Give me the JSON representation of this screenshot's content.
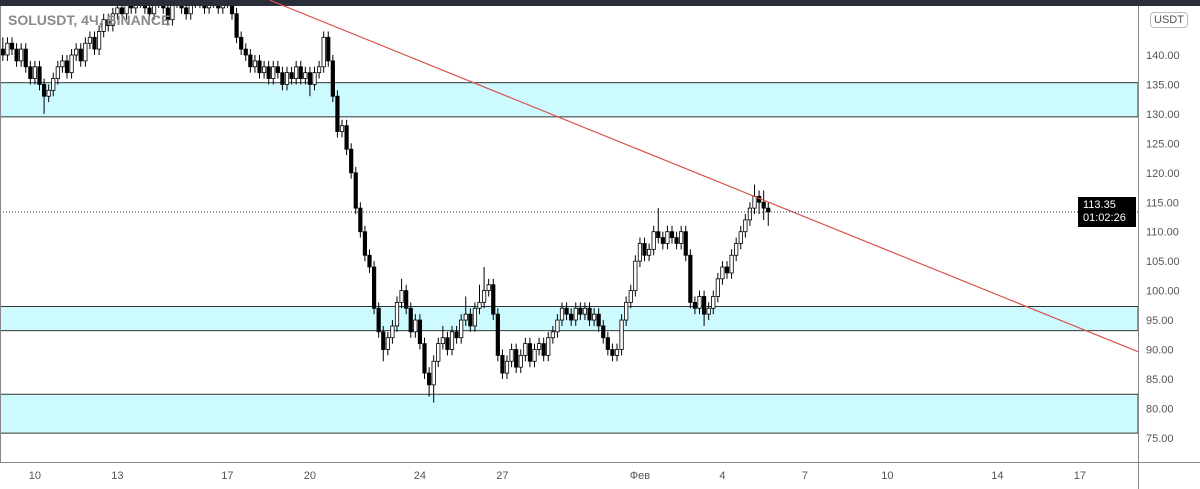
{
  "header": {
    "symbol": "SOLUSDT, 4Ч, BINANCE",
    "currency": "USDT"
  },
  "last_price": {
    "value": "113.35",
    "countdown": "01:02:26"
  },
  "colors": {
    "zone_fill": "#ccfaff",
    "trendline": "#d9534f",
    "bull": "#ffffff",
    "bear": "#000000",
    "grid": "#999999"
  },
  "chart_data": {
    "type": "candlestick",
    "interval_hours": 4,
    "first_candle": "01-08 20:00",
    "ylim": [
      73,
      149.3
    ],
    "y_ticks": [
      "140.00",
      "135.00",
      "130.00",
      "125.00",
      "120.00",
      "115.00",
      "110.00",
      "105.00",
      "100.00",
      "95.00",
      "90.00",
      "85.00",
      "80.00",
      "75.00"
    ],
    "x_ticks": [
      {
        "label": "10",
        "date": "01-10"
      },
      {
        "label": "13",
        "date": "01-13"
      },
      {
        "label": "17",
        "date": "01-17"
      },
      {
        "label": "20",
        "date": "01-20"
      },
      {
        "label": "24",
        "date": "01-24"
      },
      {
        "label": "27",
        "date": "01-27"
      },
      {
        "label": "Фев",
        "date": "02-01"
      },
      {
        "label": "4",
        "date": "02-04"
      },
      {
        "label": "7",
        "date": "02-07"
      },
      {
        "label": "10",
        "date": "02-10"
      },
      {
        "label": "14",
        "date": "02-14"
      },
      {
        "label": "17",
        "date": "02-17"
      }
    ],
    "zones": [
      [
        129.5,
        135.3
      ],
      [
        93.2,
        97.3
      ],
      [
        75.8,
        82.4
      ]
    ],
    "trendline": [
      {
        "date": "01-18 13:00",
        "price": 149.3
      },
      {
        "date": "02-19 03:00",
        "price": 89.6
      }
    ],
    "current_price": 113.35,
    "candles": [
      [
        141,
        143,
        139,
        140
      ],
      [
        140,
        143,
        139,
        142
      ],
      [
        142,
        143,
        140,
        141
      ],
      [
        141,
        142,
        138,
        139
      ],
      [
        139,
        142,
        138,
        141
      ],
      [
        141,
        142,
        137,
        138
      ],
      [
        138,
        139,
        135,
        136
      ],
      [
        136,
        139,
        135,
        138
      ],
      [
        138,
        139,
        134,
        135
      ],
      [
        135,
        136,
        130,
        133
      ],
      [
        133,
        135,
        132,
        134
      ],
      [
        134,
        137,
        133,
        136
      ],
      [
        136,
        139,
        135,
        138
      ],
      [
        138,
        140,
        137,
        139
      ],
      [
        139,
        140,
        136,
        137
      ],
      [
        137,
        141,
        136,
        140
      ],
      [
        140,
        142,
        139,
        141
      ],
      [
        141,
        142,
        138,
        139
      ],
      [
        139,
        143,
        138,
        142
      ],
      [
        142,
        144,
        141,
        143
      ],
      [
        143,
        144,
        140,
        141
      ],
      [
        141,
        145,
        140,
        144
      ],
      [
        144,
        147,
        143,
        146
      ],
      [
        146,
        147,
        144,
        145
      ],
      [
        145,
        148,
        144,
        147
      ],
      [
        147,
        149,
        146,
        148
      ],
      [
        148,
        149,
        146,
        147
      ],
      [
        147,
        150,
        146,
        149
      ],
      [
        149,
        150,
        147,
        148
      ],
      [
        148,
        151,
        147,
        150
      ],
      [
        150,
        151,
        148,
        149
      ],
      [
        149,
        150,
        147,
        148
      ],
      [
        148,
        149,
        146,
        147
      ],
      [
        147,
        150,
        146,
        149
      ],
      [
        149,
        151,
        148,
        150
      ],
      [
        150,
        151,
        147,
        148
      ],
      [
        148,
        149,
        145,
        146
      ],
      [
        146,
        150,
        145,
        149
      ],
      [
        149,
        151,
        148,
        150
      ],
      [
        150,
        151,
        147,
        148
      ],
      [
        148,
        149,
        146,
        147
      ],
      [
        147,
        150,
        146,
        149
      ],
      [
        149,
        151,
        148,
        150
      ],
      [
        150,
        151,
        148,
        149
      ],
      [
        149,
        150,
        147,
        148
      ],
      [
        148,
        151,
        147,
        150
      ],
      [
        150,
        151,
        148,
        149
      ],
      [
        149,
        150,
        147,
        148
      ],
      [
        148,
        151,
        147,
        150
      ],
      [
        150,
        151,
        148,
        149
      ],
      [
        149,
        150,
        146,
        147
      ],
      [
        147,
        148,
        142,
        143
      ],
      [
        143,
        144,
        140,
        141
      ],
      [
        141,
        142,
        139,
        140
      ],
      [
        140,
        141,
        137,
        138
      ],
      [
        138,
        140,
        137,
        139
      ],
      [
        139,
        140,
        136,
        137
      ],
      [
        137,
        139,
        136,
        138
      ],
      [
        138,
        139,
        135,
        136
      ],
      [
        136,
        139,
        135,
        138
      ],
      [
        138,
        139,
        136,
        137
      ],
      [
        137,
        138,
        134,
        135
      ],
      [
        135,
        138,
        134,
        137
      ],
      [
        137,
        138,
        135,
        136
      ],
      [
        136,
        139,
        135,
        138
      ],
      [
        138,
        139,
        135,
        136
      ],
      [
        136,
        138,
        135,
        137
      ],
      [
        137,
        138,
        133,
        135
      ],
      [
        135,
        138,
        134,
        137
      ],
      [
        137,
        139,
        136,
        138
      ],
      [
        138,
        144,
        137,
        143
      ],
      [
        143,
        144,
        138,
        139
      ],
      [
        139,
        140,
        132,
        133
      ],
      [
        133,
        134,
        126,
        127
      ],
      [
        127,
        129,
        126,
        128
      ],
      [
        128,
        129,
        123,
        124
      ],
      [
        124,
        125,
        119,
        120
      ],
      [
        120,
        121,
        113,
        114
      ],
      [
        114,
        115,
        109,
        110
      ],
      [
        110,
        111,
        105,
        106
      ],
      [
        106,
        107,
        103,
        104
      ],
      [
        104,
        105,
        96,
        97
      ],
      [
        97,
        98,
        92,
        93
      ],
      [
        93,
        94,
        88,
        90
      ],
      [
        90,
        93,
        89,
        92
      ],
      [
        92,
        95,
        91,
        94
      ],
      [
        94,
        99,
        93,
        98
      ],
      [
        98,
        102,
        97,
        100
      ],
      [
        100,
        101,
        96,
        97
      ],
      [
        97,
        98,
        92,
        93
      ],
      [
        93,
        96,
        92,
        95
      ],
      [
        95,
        96,
        90,
        91
      ],
      [
        91,
        92,
        85,
        86
      ],
      [
        86,
        87,
        82,
        84
      ],
      [
        84,
        89,
        81,
        88
      ],
      [
        88,
        92,
        87,
        91
      ],
      [
        91,
        94,
        90,
        92
      ],
      [
        92,
        93,
        89,
        90
      ],
      [
        90,
        94,
        89,
        93
      ],
      [
        93,
        94,
        91,
        92
      ],
      [
        92,
        96,
        91,
        95
      ],
      [
        95,
        99,
        94,
        96
      ],
      [
        96,
        97,
        93,
        94
      ],
      [
        94,
        98,
        93,
        97
      ],
      [
        97,
        101,
        96,
        98
      ],
      [
        98,
        104,
        97,
        100
      ],
      [
        100,
        102,
        99,
        101
      ],
      [
        101,
        102,
        95,
        96
      ],
      [
        96,
        97,
        88,
        89
      ],
      [
        89,
        90,
        85,
        86
      ],
      [
        86,
        89,
        85,
        88
      ],
      [
        88,
        91,
        87,
        90
      ],
      [
        90,
        91,
        86,
        87
      ],
      [
        87,
        90,
        86,
        89
      ],
      [
        89,
        92,
        88,
        91
      ],
      [
        91,
        92,
        87,
        88
      ],
      [
        88,
        91,
        87,
        90
      ],
      [
        90,
        92,
        89,
        91
      ],
      [
        91,
        92,
        88,
        89
      ],
      [
        89,
        93,
        88,
        92
      ],
      [
        92,
        94,
        91,
        93
      ],
      [
        93,
        96,
        92,
        95
      ],
      [
        95,
        98,
        94,
        97
      ],
      [
        97,
        98,
        95,
        96
      ],
      [
        96,
        97,
        94,
        95
      ],
      [
        95,
        98,
        94,
        97
      ],
      [
        97,
        98,
        95,
        96
      ],
      [
        96,
        98,
        95,
        97
      ],
      [
        97,
        98,
        94,
        95
      ],
      [
        95,
        97,
        94,
        96
      ],
      [
        96,
        97,
        93,
        94
      ],
      [
        94,
        95,
        91,
        92
      ],
      [
        92,
        93,
        89,
        90
      ],
      [
        90,
        91,
        88,
        89
      ],
      [
        89,
        91,
        88,
        90
      ],
      [
        90,
        96,
        89,
        95
      ],
      [
        95,
        99,
        94,
        98
      ],
      [
        98,
        101,
        97,
        100
      ],
      [
        100,
        106,
        99,
        105
      ],
      [
        105,
        109,
        104,
        108
      ],
      [
        108,
        109,
        105,
        106
      ],
      [
        106,
        108,
        105,
        107
      ],
      [
        107,
        111,
        106,
        110
      ],
      [
        110,
        114,
        108,
        109
      ],
      [
        109,
        110,
        107,
        108
      ],
      [
        108,
        111,
        107,
        110
      ],
      [
        110,
        111,
        108,
        109
      ],
      [
        109,
        110,
        107,
        108
      ],
      [
        108,
        111,
        107,
        110
      ],
      [
        110,
        111,
        105,
        106
      ],
      [
        106,
        107,
        97,
        98
      ],
      [
        98,
        99,
        96,
        97
      ],
      [
        97,
        100,
        96,
        99
      ],
      [
        99,
        100,
        94,
        96
      ],
      [
        96,
        98,
        95,
        97
      ],
      [
        97,
        100,
        96,
        99
      ],
      [
        99,
        103,
        98,
        102
      ],
      [
        102,
        105,
        101,
        104
      ],
      [
        104,
        105,
        102,
        103
      ],
      [
        103,
        107,
        102,
        106
      ],
      [
        106,
        109,
        105,
        108
      ],
      [
        108,
        111,
        107,
        110
      ],
      [
        110,
        113,
        109,
        112
      ],
      [
        112,
        115,
        111,
        114
      ],
      [
        114,
        118,
        113,
        116
      ],
      [
        116,
        117,
        113,
        115
      ],
      [
        115,
        117,
        112,
        114
      ],
      [
        114,
        115,
        111,
        113.35
      ]
    ]
  }
}
